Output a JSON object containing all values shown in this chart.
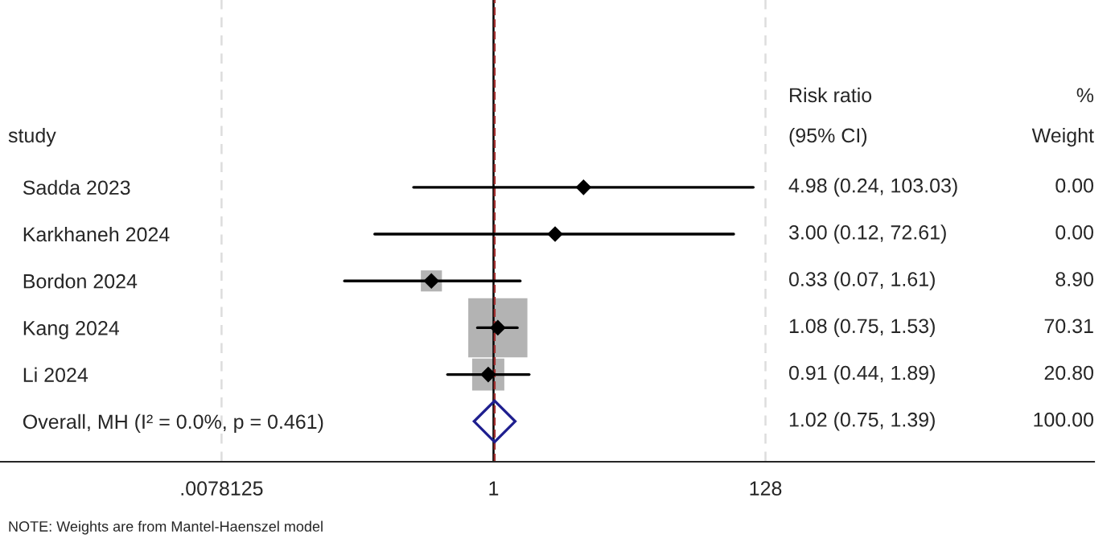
{
  "chart_data": {
    "type": "scatter",
    "orientation": "horizontal",
    "categories": [
      "Sadda 2023",
      "Karkhaneh 2024",
      "Bordon 2024",
      "Kang 2024",
      "Li 2024",
      "Overall, MH (I² = 0.0%, p = 0.461)"
    ],
    "series": [
      {
        "type": "bubble",
        "color": "#b3b3b3",
        "marker": "square",
        "values": [
          null,
          null,
          0.33,
          1.08,
          0.91,
          null
        ],
        "sizes": [
          null,
          null,
          0.127,
          1,
          0.296,
          null
        ]
      },
      {
        "color": "#000000",
        "marker": "diamond",
        "values": [
          4.98,
          3.0,
          0.33,
          1.08,
          0.91,
          null
        ],
        "errors": [
          [
            0.24,
            103.03
          ],
          [
            0.12,
            72.61
          ],
          [
            0.07,
            1.61
          ],
          [
            0.75,
            1.53
          ],
          [
            0.44,
            1.89
          ],
          null
        ]
      },
      {
        "color": "#1f1f8f",
        "marker": "diamond",
        "values": [
          null,
          null,
          null,
          null,
          null,
          1.02
        ]
      }
    ],
    "log": "x",
    "xlim": [
      0.00015,
      45000
    ],
    "xticks": [
      {
        "value": 0.0078125,
        "label": ".0078125"
      },
      1,
      128
    ],
    "ref_lines": [
      {
        "axis": "x",
        "value": 1,
        "color": "#000000",
        "line_style": "solid"
      },
      {
        "axis": "x",
        "value": 1.02,
        "color": "#a03030",
        "line_style": "dashed"
      }
    ],
    "grid": "x",
    "legend": false,
    "annotations": [
      "study",
      "Risk ratio",
      "(95% CI)",
      "%",
      "Weight",
      "4.98 (0.24, 103.03)",
      "0.00",
      "3.00 (0.12, 72.61)",
      "0.00",
      "0.33 (0.07, 1.61)",
      "8.90",
      "1.08 (0.75, 1.53)",
      "70.31",
      "0.91 (0.44, 1.89)",
      "20.80",
      "1.02 (0.75, 1.39)",
      "100.00",
      "NOTE: Weights are from Mantel-Haenszel model"
    ]
  }
}
